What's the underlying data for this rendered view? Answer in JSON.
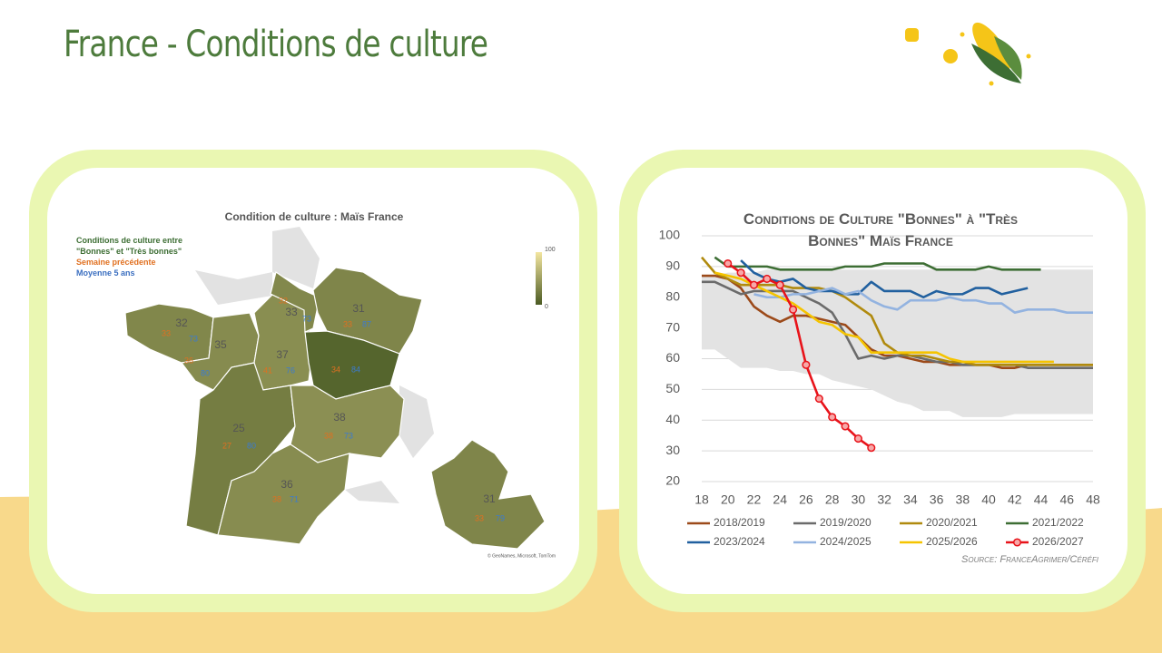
{
  "header": {
    "title": "France - Conditions de culture"
  },
  "map": {
    "title": "Condition de culture : Maïs France",
    "legend": [
      "Conditions de culture entre \"Bonnes\" et \"Très bonnes\"",
      "Semaine précédente",
      "Moyenne 5 ans"
    ],
    "scale_max": 100,
    "scale_min": 0,
    "credit": "© GeoNames, Microsoft, TomTom",
    "regions": [
      {
        "current": 32,
        "previous": 33,
        "average": 73
      },
      {
        "current": 35,
        "previous": 36,
        "average": 80
      },
      {
        "current": 37,
        "previous": 41,
        "average": 76
      },
      {
        "current": 33,
        "previous": 32,
        "average": 73
      },
      {
        "current": 31,
        "previous": 33,
        "average": 87
      },
      {
        "current": null,
        "previous": 34,
        "average": 84
      },
      {
        "current": 25,
        "previous": 27,
        "average": 80
      },
      {
        "current": 38,
        "previous": 38,
        "average": 73
      },
      {
        "current": 36,
        "previous": 38,
        "average": 71
      },
      {
        "current": 31,
        "previous": 33,
        "average": 79
      }
    ]
  },
  "chart_data": {
    "type": "line",
    "title": "Conditions de Culture \"Bonnes\" à \"Très Bonnes\" Maïs France",
    "source": "Source: FranceAgrimer/Céréfi",
    "x": [
      18,
      19,
      20,
      21,
      22,
      23,
      24,
      25,
      26,
      27,
      28,
      29,
      30,
      31,
      32,
      33,
      34,
      35,
      36,
      37,
      38,
      39,
      40,
      41,
      42,
      43,
      44,
      45,
      46,
      47,
      48
    ],
    "xlim": [
      18,
      48
    ],
    "xticks": [
      18,
      20,
      22,
      24,
      26,
      28,
      30,
      32,
      34,
      36,
      38,
      40,
      42,
      44,
      46,
      48
    ],
    "ylim": [
      20,
      100
    ],
    "yticks": [
      20,
      30,
      40,
      50,
      60,
      70,
      80,
      90,
      100
    ],
    "grid": true,
    "band": {
      "color": "#e3e3e3",
      "upper": [
        87,
        87,
        88,
        88,
        88,
        89,
        89,
        89,
        89,
        89,
        89,
        89,
        89,
        89,
        89,
        89,
        89,
        89,
        89,
        89,
        89,
        89,
        89,
        89,
        89,
        89,
        89,
        89,
        89,
        89,
        89
      ],
      "lower": [
        63,
        63,
        60,
        57,
        57,
        57,
        56,
        56,
        55,
        55,
        53,
        52,
        51,
        50,
        48,
        46,
        45,
        43,
        43,
        43,
        41,
        41,
        41,
        41,
        42,
        42,
        42,
        42,
        42,
        42,
        42
      ]
    },
    "series": [
      {
        "name": "2018/2019",
        "color": "#9c4a1a",
        "values": [
          87,
          87,
          86,
          83,
          77,
          74,
          72,
          74,
          74,
          73,
          72,
          71,
          67,
          63,
          61,
          61,
          60,
          59,
          59,
          58,
          58,
          58,
          58,
          57,
          57,
          58,
          58,
          58,
          58,
          58,
          58
        ]
      },
      {
        "name": "2019/2020",
        "color": "#6b6b6b",
        "values": [
          85,
          85,
          83,
          81,
          82,
          82,
          82,
          82,
          80,
          78,
          75,
          68,
          60,
          61,
          60,
          61,
          61,
          60,
          59,
          59,
          58,
          58,
          58,
          58,
          58,
          57,
          57,
          57,
          57,
          57,
          57
        ]
      },
      {
        "name": "2020/2021",
        "color": "#b08a0e",
        "values": [
          93,
          88,
          86,
          84,
          84,
          84,
          84,
          83,
          83,
          83,
          82,
          80,
          77,
          74,
          65,
          62,
          61,
          61,
          60,
          59,
          59,
          58,
          58,
          58,
          58,
          58,
          58,
          58,
          58,
          58,
          58
        ]
      },
      {
        "name": "2021/2022",
        "color": "#3d6e34",
        "values": [
          null,
          93,
          90,
          90,
          90,
          90,
          89,
          89,
          89,
          89,
          89,
          90,
          90,
          90,
          91,
          91,
          91,
          91,
          89,
          89,
          89,
          89,
          90,
          89,
          89,
          89,
          89,
          null,
          null,
          null,
          null
        ]
      },
      {
        "name": "2023/2024",
        "color": "#21609f",
        "values": [
          null,
          null,
          null,
          92,
          88,
          86,
          85,
          86,
          83,
          82,
          82,
          81,
          81,
          85,
          82,
          82,
          82,
          80,
          82,
          81,
          81,
          83,
          83,
          81,
          82,
          83,
          null,
          null,
          null,
          null,
          null
        ]
      },
      {
        "name": "2024/2025",
        "color": "#93b3e0",
        "values": [
          null,
          null,
          null,
          null,
          81,
          80,
          80,
          81,
          81,
          82,
          83,
          81,
          82,
          79,
          77,
          76,
          79,
          79,
          79,
          80,
          79,
          79,
          78,
          78,
          75,
          76,
          76,
          76,
          75,
          75,
          75
        ]
      },
      {
        "name": "2025/2026",
        "color": "#f5c400",
        "values": [
          null,
          88,
          87,
          86,
          84,
          82,
          80,
          78,
          75,
          72,
          71,
          68,
          67,
          62,
          62,
          62,
          62,
          62,
          62,
          60,
          59,
          59,
          59,
          59,
          59,
          59,
          59,
          59,
          null,
          null,
          null
        ]
      },
      {
        "name": "2026/2027",
        "color": "#e8131a",
        "marker": "circle",
        "values": [
          null,
          null,
          91,
          88,
          84,
          86,
          84,
          76,
          58,
          47,
          41,
          38,
          34,
          31,
          null,
          null,
          null,
          null,
          null,
          null,
          null,
          null,
          null,
          null,
          null,
          null,
          null,
          null,
          null,
          null,
          null
        ]
      }
    ]
  }
}
